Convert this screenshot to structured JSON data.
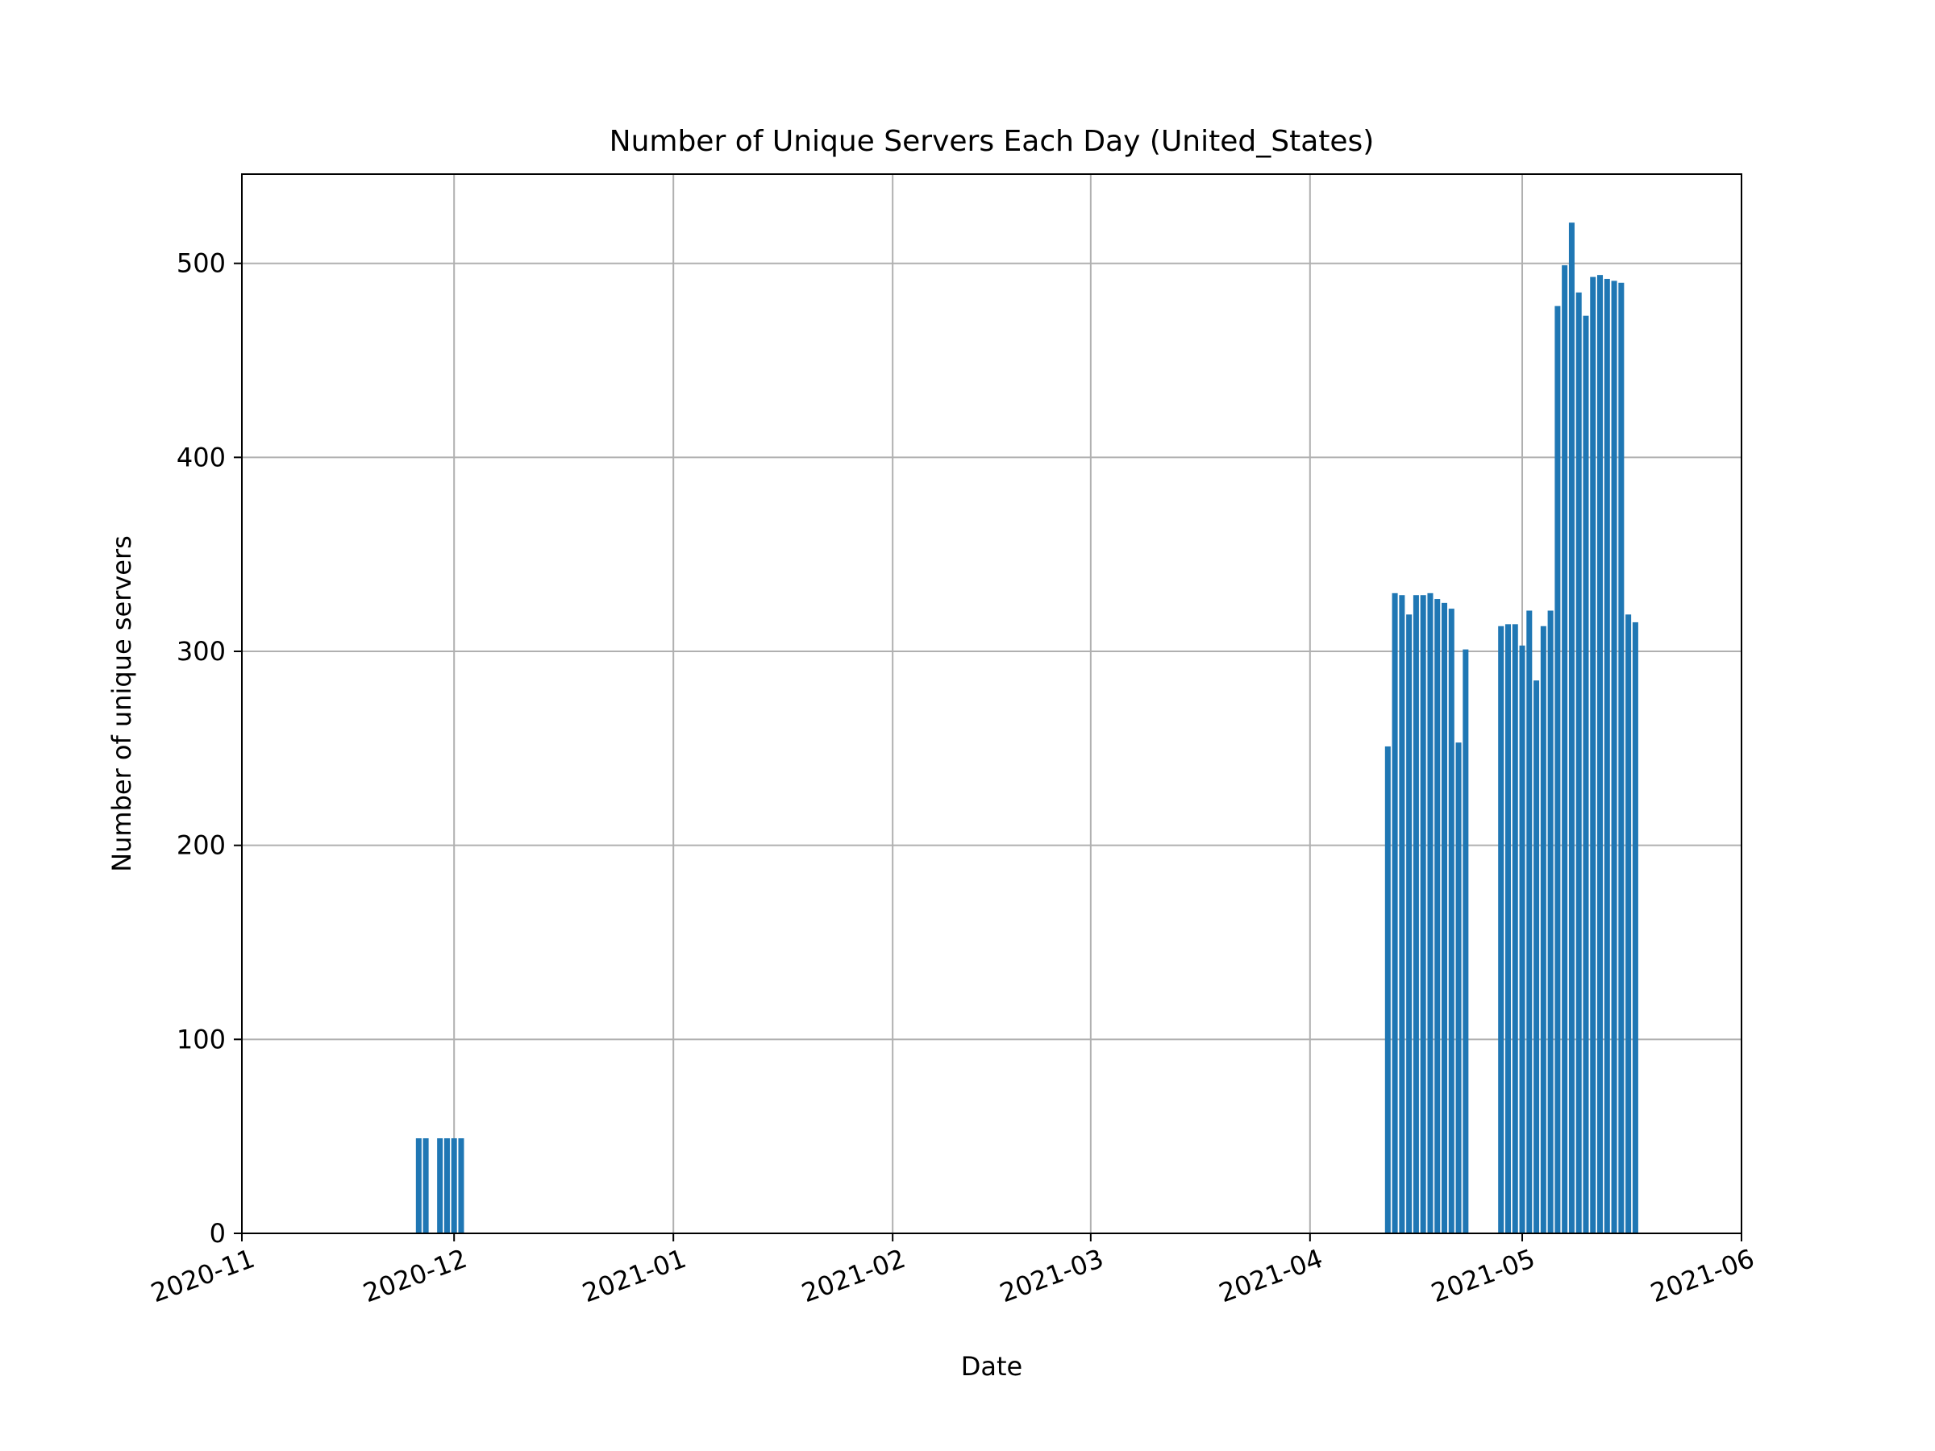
{
  "chart_data": {
    "type": "bar",
    "title": "Number of Unique Servers Each Day (United_States)",
    "xlabel": "Date",
    "ylabel": "Number of unique servers",
    "xlim": [
      "2020-11-01",
      "2021-06-01"
    ],
    "ylim": [
      0,
      546
    ],
    "x_ticks": [
      "2020-11",
      "2020-12",
      "2021-01",
      "2021-02",
      "2021-03",
      "2021-04",
      "2021-05",
      "2021-06"
    ],
    "x_tick_dates": [
      "2020-11-01",
      "2020-12-01",
      "2021-01-01",
      "2021-02-01",
      "2021-03-01",
      "2021-04-01",
      "2021-05-01",
      "2021-06-01"
    ],
    "y_ticks": [
      0,
      100,
      200,
      300,
      400,
      500
    ],
    "grid": true,
    "bar_color": "#1f77b4",
    "series": [
      {
        "x": [
          "2020-11-26",
          "2020-11-27",
          "2020-11-29",
          "2020-11-30",
          "2020-12-01",
          "2020-12-02",
          "2021-04-12",
          "2021-04-13",
          "2021-04-14",
          "2021-04-15",
          "2021-04-16",
          "2021-04-17",
          "2021-04-18",
          "2021-04-19",
          "2021-04-20",
          "2021-04-21",
          "2021-04-22",
          "2021-04-23",
          "2021-04-24",
          "2021-04-28",
          "2021-04-29",
          "2021-04-30",
          "2021-05-01",
          "2021-05-02",
          "2021-05-03",
          "2021-05-04",
          "2021-05-05",
          "2021-05-06",
          "2021-05-07",
          "2021-05-08",
          "2021-05-09",
          "2021-05-10",
          "2021-05-11",
          "2021-05-12",
          "2021-05-13",
          "2021-05-14",
          "2021-05-15",
          "2021-05-16",
          "2021-05-17",
          "2021-05-18"
        ],
        "y": [
          49,
          49,
          49,
          49,
          49,
          49,
          251,
          330,
          329,
          319,
          329,
          329,
          330,
          327,
          325,
          322,
          253,
          301,
          0,
          313,
          314,
          314,
          303,
          321,
          285,
          313,
          321,
          478,
          499,
          521,
          485,
          473,
          493,
          494,
          492,
          491,
          490,
          319,
          315,
          0
        ]
      }
    ]
  }
}
